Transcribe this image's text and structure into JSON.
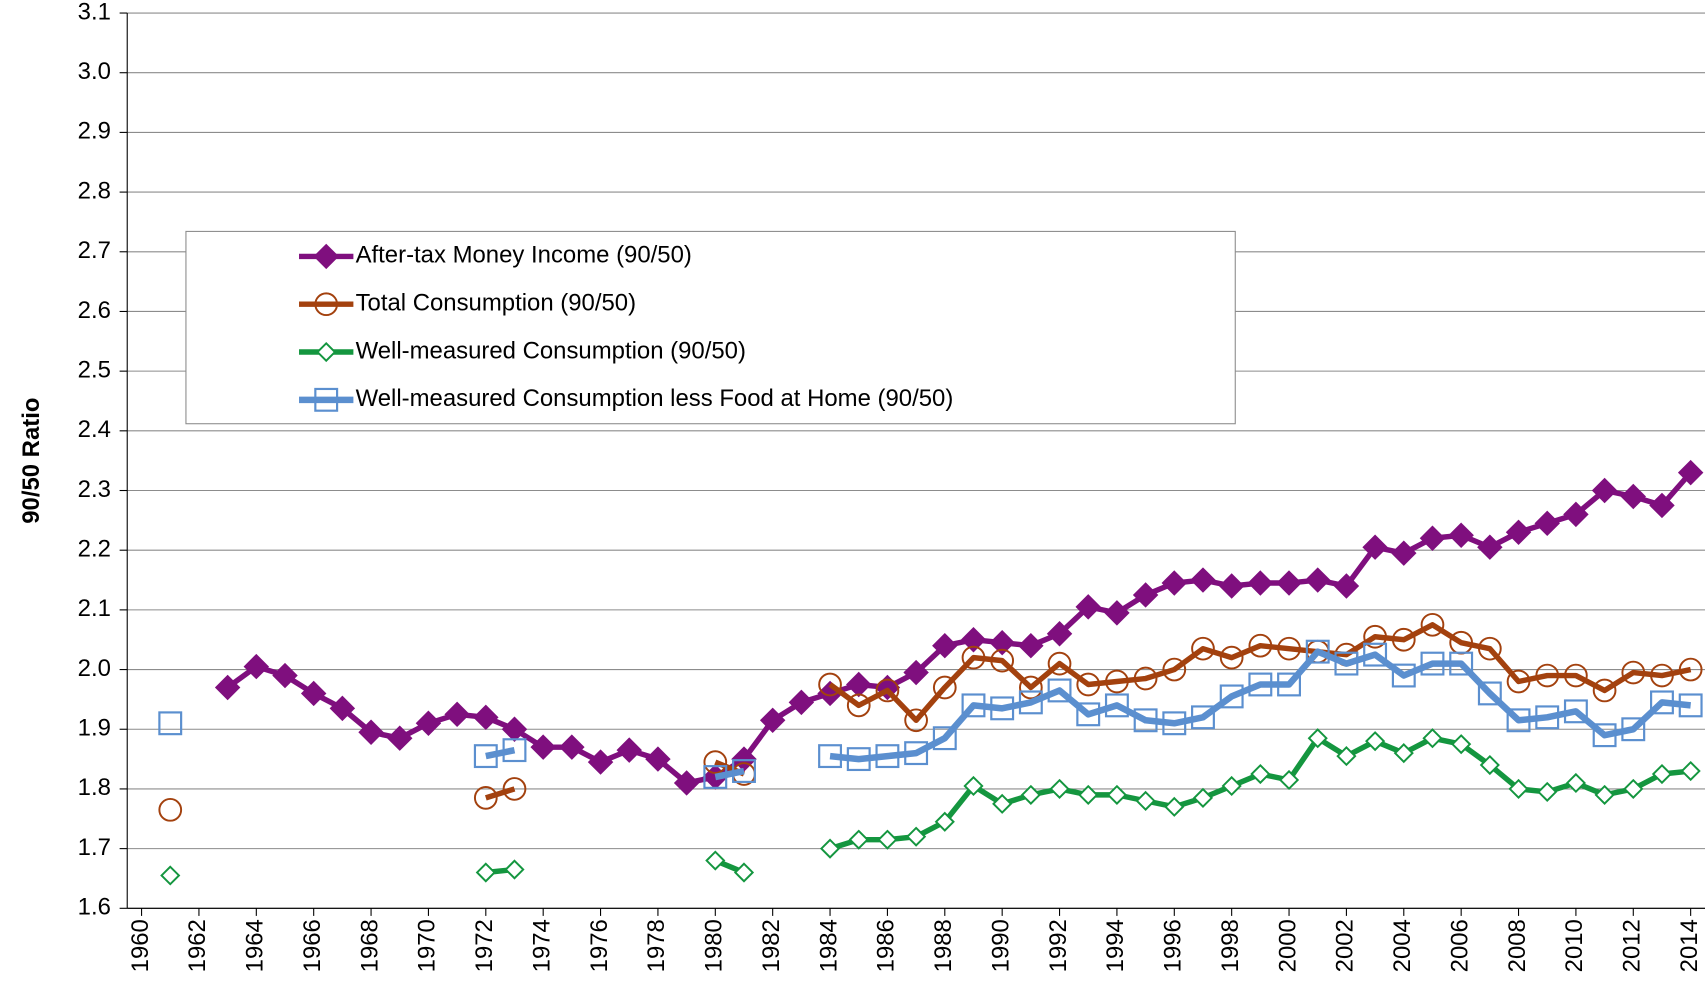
{
  "chart_data": {
    "type": "line",
    "y_label": "90/50 Ratio",
    "x": [
      1960,
      1961,
      1962,
      1963,
      1964,
      1965,
      1966,
      1967,
      1968,
      1969,
      1970,
      1971,
      1972,
      1973,
      1974,
      1975,
      1976,
      1977,
      1978,
      1979,
      1980,
      1981,
      1982,
      1983,
      1984,
      1985,
      1986,
      1987,
      1988,
      1989,
      1990,
      1991,
      1992,
      1993,
      1994,
      1995,
      1996,
      1997,
      1998,
      1999,
      2000,
      2001,
      2002,
      2003,
      2004,
      2005,
      2006,
      2007,
      2008,
      2009,
      2010,
      2011,
      2012,
      2013,
      2014
    ],
    "xlim": [
      1959.5,
      2014.5
    ],
    "xticks": [
      1960,
      1962,
      1964,
      1966,
      1968,
      1970,
      1972,
      1974,
      1976,
      1978,
      1980,
      1982,
      1984,
      1986,
      1988,
      1990,
      1992,
      1994,
      1996,
      1998,
      2000,
      2002,
      2004,
      2006,
      2008,
      2010,
      2012,
      2014
    ],
    "ylim": [
      1.6,
      3.1
    ],
    "yticks": [
      1.6,
      1.7,
      1.8,
      1.9,
      {
        "value": 2,
        "label": "2.0"
      },
      2.1,
      2.2,
      2.3,
      2.4,
      2.5,
      2.6,
      2.7,
      2.8,
      2.9,
      {
        "value": 3,
        "label": "3.0"
      },
      3.1
    ],
    "grid": true,
    "legend": "upper left",
    "series": [
      {
        "name": "After-tax Money Income (90/50)",
        "color": "#7f0f7e",
        "marker": "filled-diamond",
        "values": [
          null,
          null,
          null,
          1.97,
          2.005,
          1.99,
          1.96,
          1.935,
          1.895,
          1.885,
          1.91,
          1.925,
          1.92,
          1.9,
          1.87,
          1.87,
          1.845,
          1.865,
          1.85,
          1.81,
          1.82,
          1.85,
          1.915,
          1.945,
          1.96,
          1.975,
          1.97,
          1.995,
          2.04,
          2.05,
          2.045,
          2.04,
          2.06,
          2.105,
          2.095,
          2.125,
          2.145,
          2.15,
          2.14,
          2.145,
          2.145,
          2.15,
          2.14,
          2.205,
          2.195,
          2.22,
          2.225,
          2.205,
          2.23,
          2.245,
          2.26,
          2.3,
          2.29,
          2.275,
          2.33
        ]
      },
      {
        "name": "Total Consumption (90/50)",
        "color": "#a3410e",
        "marker": "open-circle",
        "values": [
          null,
          1.765,
          null,
          null,
          null,
          null,
          null,
          null,
          null,
          null,
          null,
          null,
          1.785,
          1.8,
          null,
          null,
          null,
          null,
          null,
          null,
          1.845,
          1.825,
          null,
          null,
          1.975,
          1.94,
          1.965,
          1.915,
          1.97,
          2.02,
          2.015,
          1.97,
          2.01,
          1.975,
          1.98,
          1.985,
          2.0,
          2.035,
          2.02,
          2.04,
          2.035,
          2.03,
          2.025,
          2.055,
          2.05,
          2.075,
          2.045,
          2.035,
          1.98,
          1.99,
          1.99,
          1.965,
          1.995,
          1.99,
          2.0
        ]
      },
      {
        "name": "Well-measured Consumption (90/50)",
        "color": "#14963f",
        "marker": "open-diamond",
        "values": [
          null,
          1.655,
          null,
          null,
          null,
          null,
          null,
          null,
          null,
          null,
          null,
          null,
          1.66,
          1.665,
          null,
          null,
          null,
          null,
          null,
          null,
          1.68,
          1.66,
          null,
          null,
          1.7,
          1.715,
          1.715,
          1.72,
          1.745,
          1.805,
          1.775,
          1.79,
          1.8,
          1.79,
          1.79,
          1.78,
          1.77,
          1.785,
          1.805,
          1.825,
          1.815,
          1.885,
          1.855,
          1.88,
          1.86,
          1.885,
          1.875,
          1.84,
          1.8,
          1.795,
          1.81,
          1.79,
          1.8,
          1.825,
          1.83
        ]
      },
      {
        "name": "Well-measured Consumption less Food at Home (90/50)",
        "color": "#5b8fcf",
        "marker": "open-square",
        "values": [
          null,
          1.91,
          null,
          null,
          null,
          null,
          null,
          null,
          null,
          null,
          null,
          null,
          1.855,
          1.865,
          null,
          null,
          null,
          null,
          null,
          null,
          1.82,
          1.83,
          null,
          null,
          1.855,
          1.85,
          1.855,
          1.86,
          1.885,
          1.94,
          1.935,
          1.945,
          1.965,
          1.925,
          1.94,
          1.915,
          1.91,
          1.92,
          1.955,
          1.975,
          1.975,
          2.03,
          2.01,
          2.025,
          1.99,
          2.01,
          2.01,
          1.96,
          1.915,
          1.92,
          1.93,
          1.89,
          1.9,
          1.945,
          1.94
        ]
      }
    ]
  }
}
